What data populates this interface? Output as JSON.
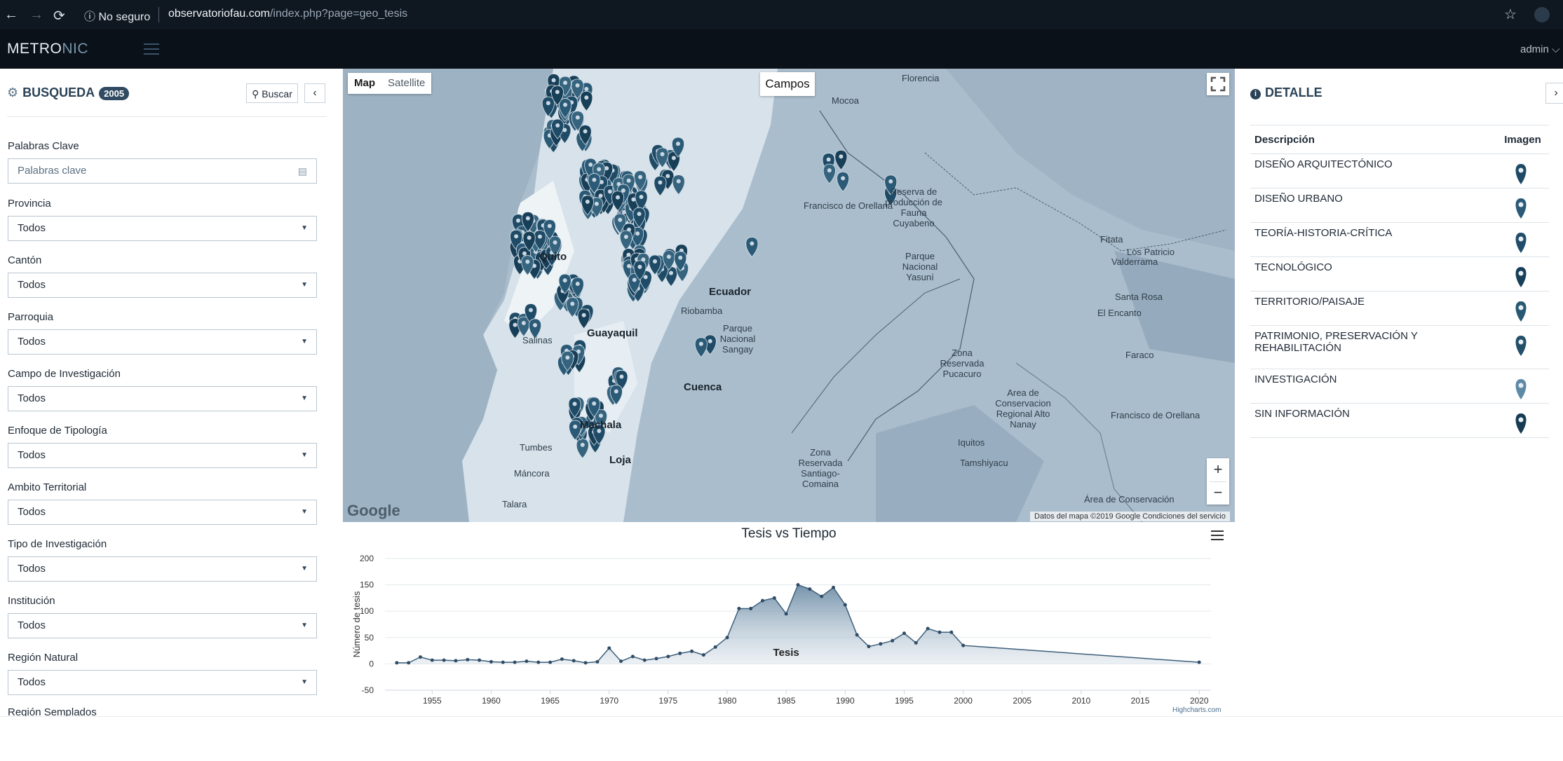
{
  "browser": {
    "security_text": "No seguro",
    "url_host": "observatoriofau.com",
    "url_path": "/index.php?page=geo_tesis",
    "back": "←",
    "forward": "→",
    "reload": "⟳",
    "star": "☆"
  },
  "app": {
    "logo_light": "METRO",
    "logo_accent": "NIC",
    "user": "admin ⌵"
  },
  "search_panel": {
    "title": "BUSQUEDA",
    "count": "2005",
    "search_button": "Buscar",
    "collapse_button": "‹",
    "keywords_label": "Palabras Clave",
    "keywords_placeholder": "Palabras clave",
    "filters": [
      {
        "label": "Provincia",
        "value": "Todos"
      },
      {
        "label": "Cantón",
        "value": "Todos"
      },
      {
        "label": "Parroquia",
        "value": "Todos"
      },
      {
        "label": "Campo de Investigación",
        "value": "Todos"
      },
      {
        "label": "Enfoque de Tipología",
        "value": "Todos"
      },
      {
        "label": "Ambito Territorial",
        "value": "Todos"
      },
      {
        "label": "Tipo de Investigación",
        "value": "Todos"
      },
      {
        "label": "Institución",
        "value": "Todos"
      },
      {
        "label": "Región Natural",
        "value": "Todos"
      }
    ],
    "cutoff_label": "Región Semplados"
  },
  "map": {
    "type_map": "Map",
    "type_satellite": "Satellite",
    "layer_label": "Campos",
    "zoom_in": "+",
    "zoom_out": "−",
    "google": "Google",
    "attribution": "Datos del mapa ©2019 Google    Condiciones del servicio",
    "labels": [
      {
        "text": "Florencia",
        "cls": ""
      },
      {
        "text": "Mocoa",
        "cls": ""
      },
      {
        "text": "Reserva de producción de Fauna Cuyabeno",
        "cls": ""
      },
      {
        "text": "Francisco de Orellana",
        "cls": ""
      },
      {
        "text": "Parque Nacional Yasuní",
        "cls": ""
      },
      {
        "text": "Zona Reservada Pucacuro",
        "cls": ""
      },
      {
        "text": "Area de Conservacion Regional Alto Nanay",
        "cls": ""
      },
      {
        "text": "Iquitos",
        "cls": ""
      },
      {
        "text": "Tamshiyacu",
        "cls": ""
      },
      {
        "text": "Zona Reservada Santiago-Comaina",
        "cls": ""
      },
      {
        "text": "Parque Nacional Sangay",
        "cls": ""
      },
      {
        "text": "Guayaquil",
        "cls": "big"
      },
      {
        "text": "Ecuador",
        "cls": "big"
      },
      {
        "text": "Cuenca",
        "cls": "big"
      },
      {
        "text": "Salinas",
        "cls": ""
      },
      {
        "text": "Tumbes",
        "cls": ""
      },
      {
        "text": "Máncora",
        "cls": ""
      },
      {
        "text": "Talara",
        "cls": ""
      },
      {
        "text": "Fitata",
        "cls": ""
      },
      {
        "text": "Los Patricio",
        "cls": ""
      },
      {
        "text": "Valderrama",
        "cls": ""
      },
      {
        "text": "Santa Rosa",
        "cls": ""
      },
      {
        "text": "El Encanto",
        "cls": ""
      },
      {
        "text": "Faraco",
        "cls": ""
      },
      {
        "text": "Francisco de Orellana",
        "cls": ""
      },
      {
        "text": "Área de Conservación",
        "cls": ""
      },
      {
        "text": "Quito",
        "cls": "big"
      },
      {
        "text": "Machala",
        "cls": "big"
      },
      {
        "text": "Loja",
        "cls": "big"
      },
      {
        "text": "Riobamba",
        "cls": ""
      }
    ]
  },
  "chart_data": {
    "type": "area",
    "title": "Tesis vs Tiempo",
    "ylabel": "Número de tesis",
    "series_label": "Tesis",
    "credits": "Highcharts.com",
    "xlim": [
      1951,
      2021
    ],
    "ylim": [
      -50,
      200
    ],
    "yticks": [
      -50,
      0,
      50,
      100,
      150,
      200
    ],
    "xticks": [
      1955,
      1960,
      1965,
      1970,
      1975,
      1980,
      1985,
      1990,
      1995,
      2000,
      2005,
      2010,
      2015,
      2020
    ],
    "series": [
      {
        "name": "Tesis",
        "x": [
          1952,
          1953,
          1954,
          1955,
          1956,
          1957,
          1958,
          1959,
          1960,
          1961,
          1962,
          1963,
          1964,
          1965,
          1966,
          1967,
          1968,
          1969,
          1970,
          1971,
          1972,
          1973,
          1974,
          1975,
          1976,
          1977,
          1978,
          1979,
          1980,
          1981,
          1982,
          1983,
          1984,
          1985,
          1986,
          1987,
          1988,
          1989,
          1990,
          1991,
          1992,
          1993,
          1994,
          1995,
          1996,
          1997,
          1998,
          1999,
          2000,
          2020
        ],
        "values": [
          2,
          2,
          13,
          7,
          7,
          6,
          8,
          7,
          4,
          3,
          3,
          5,
          3,
          3,
          9,
          6,
          2,
          4,
          30,
          5,
          14,
          7,
          10,
          14,
          20,
          24,
          17,
          32,
          50,
          105,
          105,
          120,
          125,
          95,
          150,
          142,
          128,
          145,
          112,
          55,
          33,
          38,
          44,
          58,
          40,
          67,
          60,
          60,
          35,
          3
        ]
      }
    ]
  },
  "detail_panel": {
    "title": "DETALLE",
    "collapse_button": "›",
    "col_description": "Descripción",
    "col_image": "Imagen",
    "rows": [
      {
        "label": "DISEÑO ARQUITECTÓNICO",
        "color": "#1e4a66"
      },
      {
        "label": "DISEÑO URBANO",
        "color": "#2a5a78"
      },
      {
        "label": "TEORÍA-HISTORIA-CRÍTICA",
        "color": "#204d6a"
      },
      {
        "label": "TECNOLÓGICO",
        "color": "#183f59"
      },
      {
        "label": "TERRITORIO/PAISAJE",
        "color": "#285873"
      },
      {
        "label": "PATRIMONIO, PRESERVACIÓN Y REHABILITACIÓN",
        "color": "#234f6b"
      },
      {
        "label": "INVESTIGACIÓN",
        "color": "#5f8aa6"
      },
      {
        "label": "SIN INFORMACIÓN",
        "color": "#173b52"
      }
    ]
  }
}
